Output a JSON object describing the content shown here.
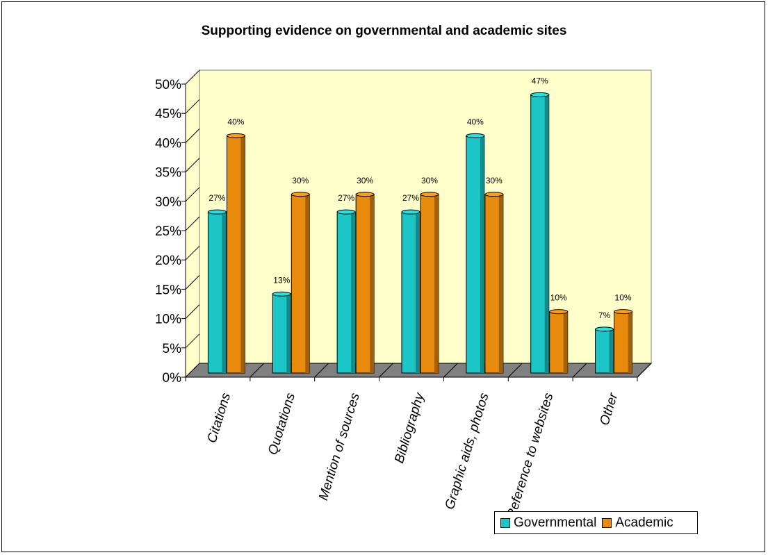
{
  "chart_data": {
    "type": "bar",
    "title": "Supporting evidence on governmental and academic sites",
    "categories": [
      "Citations",
      "Quotations",
      "Mention of sources",
      "Bibliography",
      "Graphic aids, photos",
      "Reference to websites",
      "Other"
    ],
    "series": [
      {
        "name": "Governmental",
        "values": [
          27,
          13,
          27,
          27,
          40,
          47,
          7
        ],
        "labels": [
          "27%",
          "13%",
          "27%",
          "27%",
          "40%",
          "47%",
          "7%"
        ],
        "color": "#1CC6C6"
      },
      {
        "name": "Academic",
        "values": [
          40,
          30,
          30,
          30,
          30,
          10,
          10
        ],
        "labels": [
          "40%",
          "30%",
          "30%",
          "30%",
          "30%",
          "10%",
          "10%"
        ],
        "color": "#E88A0C"
      }
    ],
    "yticks": [
      "0%",
      "5%",
      "10%",
      "15%",
      "20%",
      "25%",
      "30%",
      "35%",
      "40%",
      "45%",
      "50%"
    ],
    "ylim": [
      0,
      50
    ],
    "xlabel": "",
    "ylabel": "",
    "grid": false,
    "legend": "bottom-right",
    "plot_background": "#FFFFCC",
    "floor_color": "#808080"
  }
}
